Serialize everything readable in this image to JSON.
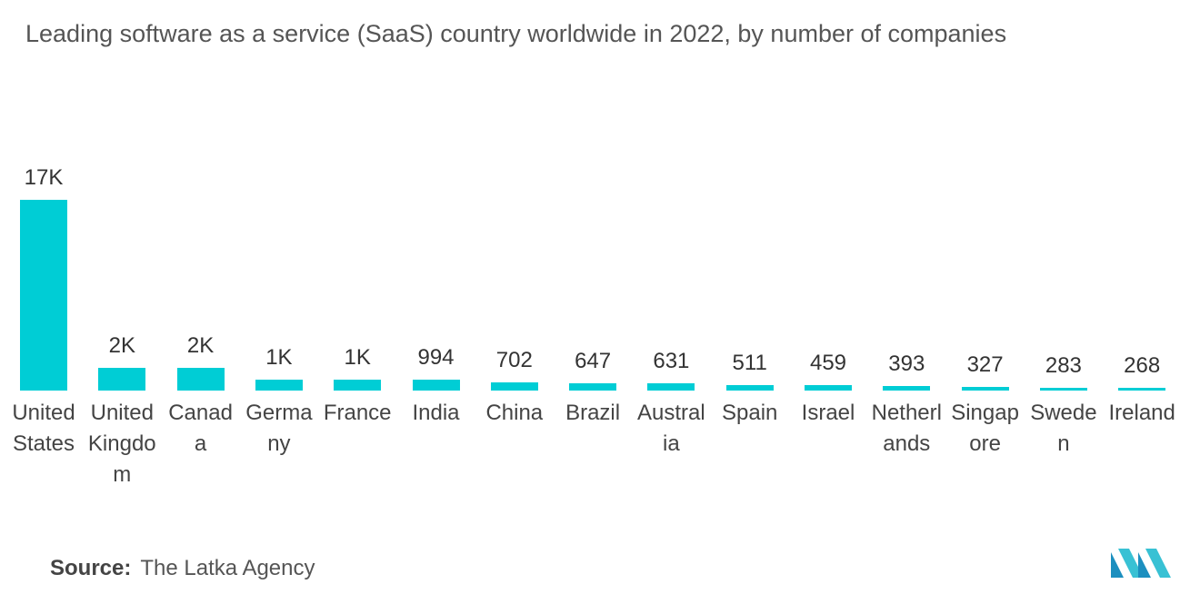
{
  "chart_data": {
    "type": "bar",
    "title": "Leading software as a service (SaaS) country worldwide in 2022, by number of companies",
    "categories": [
      "United States",
      "United Kingdom",
      "Canada",
      "Germany",
      "France",
      "India",
      "China",
      "Brazil",
      "Australia",
      "Spain",
      "Israel",
      "Netherlands",
      "Singapore",
      "Sweden",
      "Ireland"
    ],
    "values": [
      17000,
      2000,
      2000,
      1000,
      1000,
      994,
      702,
      647,
      631,
      511,
      459,
      393,
      327,
      283,
      268
    ],
    "value_labels": [
      "17K",
      "2K",
      "2K",
      "1K",
      "1K",
      "994",
      "702",
      "647",
      "631",
      "511",
      "459",
      "393",
      "327",
      "283",
      "268"
    ],
    "color": "#00CDD5"
  },
  "source": {
    "label": "Source:",
    "text": "The Latka Agency"
  }
}
